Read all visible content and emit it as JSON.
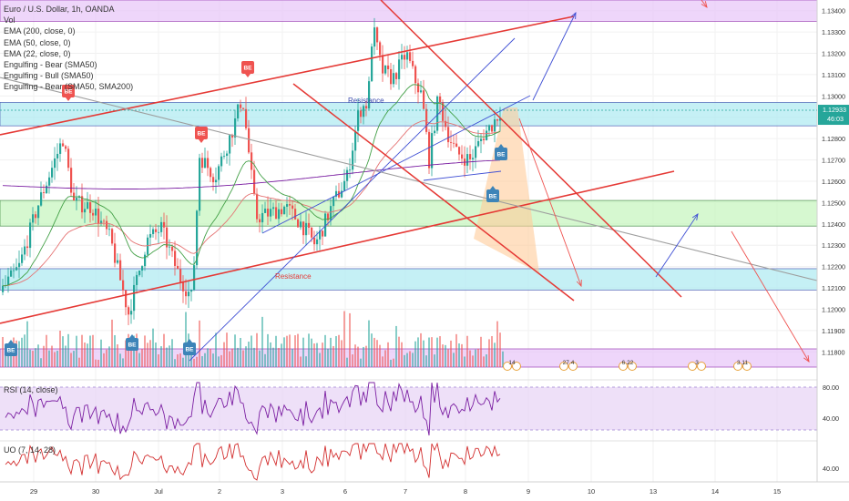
{
  "symbol_title": "Euro / U.S. Dollar, 1h, OANDA",
  "legend": [
    "Vol",
    "EMA (200, close, 0)",
    "EMA (50, close, 0)",
    "EMA (22, close, 0)",
    "Engulfing - Bear (SMA50)",
    "Engulfing - Bull (SMA50)",
    "Engulfing - Bear (SMA50, SMA200)"
  ],
  "price_axis": {
    "min": 1.1172,
    "max": 1.1345,
    "ticks": [
      "1.13400",
      "1.13300",
      "1.13200",
      "1.13100",
      "1.13000",
      "1.12900",
      "1.12800",
      "1.12700",
      "1.12600",
      "1.12500",
      "1.12400",
      "1.12300",
      "1.12200",
      "1.12100",
      "1.12000",
      "1.11900",
      "1.11800"
    ],
    "current_price": "1.12933",
    "countdown": "46:03"
  },
  "time_axis": {
    "labels": [
      "29",
      "30",
      "Jul",
      "2",
      "3",
      "6",
      "7",
      "8",
      "9",
      "10",
      "13",
      "14",
      "15"
    ]
  },
  "annotations": {
    "resistance_upper": "Resistance",
    "resistance_lower": "Resistance",
    "signal_labels": [
      "BE",
      "BE",
      "BE",
      "BE",
      "BE",
      "BE",
      "BE",
      "BE"
    ]
  },
  "events": [
    {
      "count": "14"
    },
    {
      "count": "27 4"
    },
    {
      "count": "6   22"
    },
    {
      "count": "3"
    },
    {
      "count": "3 11"
    }
  ],
  "rsi": {
    "title": "RSI (14, close)",
    "axis_labels": [
      "80.00",
      "40.00"
    ]
  },
  "uo": {
    "title": "UO (7, 14, 28)",
    "axis_labels": [
      "40.00"
    ]
  },
  "colors": {
    "bull": "#26a69a",
    "bear": "#ef5350",
    "zone_cyan": "#b2ebf2",
    "zone_green": "#c8f5c0",
    "zone_purple": "#e8c8f8",
    "trend_red": "#e53935",
    "trend_blue": "#3f4fd4",
    "current_price_tag": "#26a69a"
  },
  "chart_data": {
    "type": "candlestick",
    "title": "Euro / U.S. Dollar, 1h, OANDA",
    "y_range": [
      1.1172,
      1.1345
    ],
    "x_categories": [
      "29",
      "30",
      "Jul",
      "2",
      "3",
      "6",
      "7",
      "8",
      "9",
      "10",
      "13",
      "14",
      "15"
    ],
    "series": [
      {
        "name": "EMA (200, close, 0)",
        "color": "#7b1fa2"
      },
      {
        "name": "EMA (50, close, 0)",
        "color": "#e57373"
      },
      {
        "name": "EMA (22, close, 0)",
        "color": "#43a047"
      }
    ],
    "zones": [
      {
        "color": "purple",
        "from": 1.1335,
        "to": 1.1345
      },
      {
        "color": "cyan",
        "from": 1.1286,
        "to": 1.1297
      },
      {
        "color": "green",
        "from": 1.1239,
        "to": 1.1251
      },
      {
        "color": "cyan",
        "from": 1.1209,
        "to": 1.1219
      }
    ],
    "last_price": 1.12933,
    "grid": true
  }
}
